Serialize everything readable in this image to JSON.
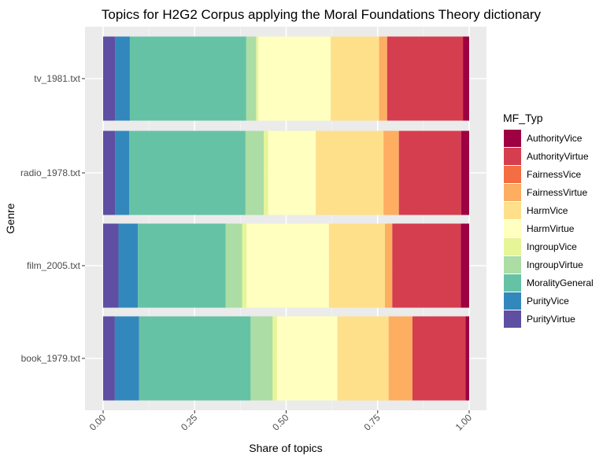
{
  "chart_data": {
    "type": "bar",
    "orientation": "horizontal",
    "stacked": true,
    "title": "Topics for H2G2 Corpus applying the Moral Foundations Theory dictionary",
    "xlabel": "Share of topics",
    "ylabel": "Genre",
    "xlim": [
      0,
      1
    ],
    "x_ticks": [
      "0.00",
      "0.25",
      "0.50",
      "0.75",
      "1.00"
    ],
    "grid": true,
    "categories": [
      "tv_1981.txt",
      "radio_1978.txt",
      "film_2005.txt",
      "book_1979.txt"
    ],
    "legend": {
      "title": "MF_Typ",
      "position": "right"
    },
    "series": [
      {
        "name": "PurityVirtue",
        "color": "#5e4fa2",
        "values": [
          0.033,
          0.033,
          0.042,
          0.032
        ]
      },
      {
        "name": "PurityVice",
        "color": "#3288bd",
        "values": [
          0.04,
          0.038,
          0.053,
          0.066
        ]
      },
      {
        "name": "MoralityGeneral",
        "color": "#66c2a5",
        "values": [
          0.318,
          0.318,
          0.24,
          0.305
        ]
      },
      {
        "name": "IngroupVirtue",
        "color": "#abdda4",
        "values": [
          0.027,
          0.05,
          0.045,
          0.06
        ]
      },
      {
        "name": "IngroupVice",
        "color": "#e6f598",
        "values": [
          0.006,
          0.012,
          0.012,
          0.012
        ]
      },
      {
        "name": "HarmVirtue",
        "color": "#ffffbf",
        "values": [
          0.198,
          0.13,
          0.225,
          0.165
        ]
      },
      {
        "name": "HarmVice",
        "color": "#fee08b",
        "values": [
          0.132,
          0.185,
          0.153,
          0.14
        ]
      },
      {
        "name": "FairnessVirtue",
        "color": "#fdae61",
        "values": [
          0.022,
          0.042,
          0.02,
          0.065
        ]
      },
      {
        "name": "FairnessVice",
        "color": "#f46d43",
        "values": [
          0.0,
          0.0,
          0.0,
          0.0
        ]
      },
      {
        "name": "AuthorityVirtue",
        "color": "#d53e4f",
        "values": [
          0.207,
          0.17,
          0.187,
          0.145
        ]
      },
      {
        "name": "AuthorityVice",
        "color": "#9e0142",
        "values": [
          0.017,
          0.022,
          0.023,
          0.01
        ]
      }
    ],
    "legend_order": [
      "AuthorityVice",
      "AuthorityVirtue",
      "FairnessVice",
      "FairnessVirtue",
      "HarmVice",
      "HarmVirtue",
      "IngroupVice",
      "IngroupVirtue",
      "MoralityGeneral",
      "PurityVice",
      "PurityVirtue"
    ]
  }
}
